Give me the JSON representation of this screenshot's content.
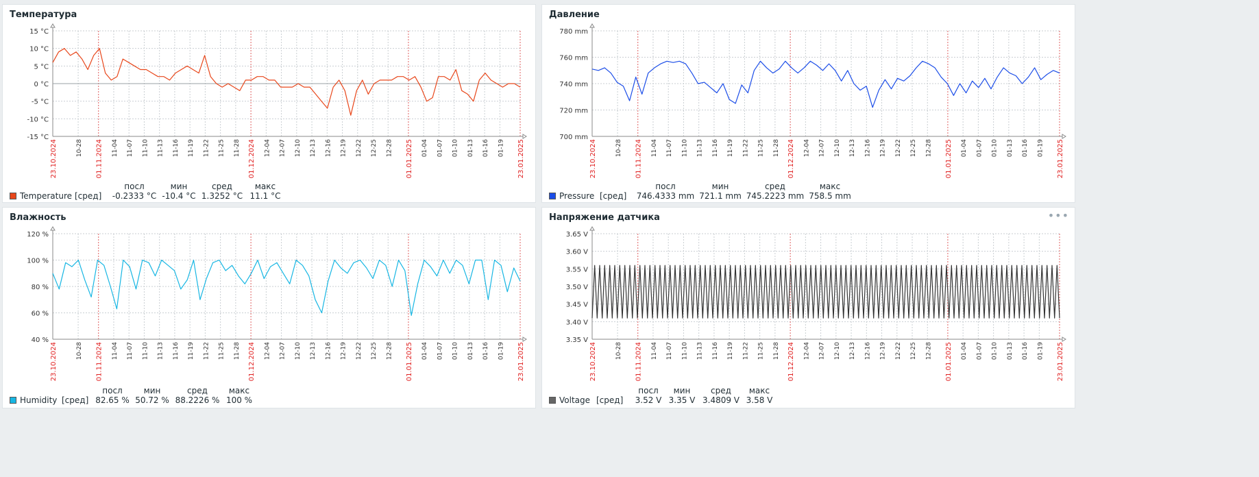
{
  "panels": [
    {
      "title": "Температура",
      "color": "#e8471b",
      "legend": {
        "name": "Temperature",
        "fn": "[сред]",
        "headers": [
          "посл",
          "мин",
          "сред",
          "макс"
        ],
        "values": [
          "-0.2333 °C",
          "-10.4 °C",
          "1.3252 °C",
          "11.1 °C"
        ]
      },
      "chart_data": {
        "type": "line",
        "unit": "°C",
        "ylim": [
          -15,
          15
        ],
        "yticks": [
          "15 °C",
          "10 °C",
          "5 °C",
          "0 °C",
          "-5 °C",
          "-10 °C",
          "-15 °C"
        ],
        "x_range": [
          "23.10.2024",
          "23.01.2025"
        ],
        "series": [
          {
            "name": "Temperature",
            "x_step_days": 2,
            "values": [
              6,
              9,
              10,
              8,
              9,
              7,
              4,
              8,
              10,
              3,
              1,
              2,
              7,
              6,
              5,
              4,
              4,
              3,
              2,
              2,
              1,
              3,
              4,
              5,
              4,
              3,
              8,
              2,
              0,
              -1,
              0,
              -1,
              -2,
              1,
              1,
              2,
              2,
              1,
              1,
              -1,
              -1,
              -1,
              0,
              -1,
              -1,
              -3,
              -5,
              -7,
              -1,
              1,
              -2,
              -9,
              -2,
              1,
              -3,
              0,
              1,
              1,
              1,
              2,
              2,
              1,
              2,
              -1,
              -5,
              -4,
              2,
              2,
              1,
              4,
              -2,
              -3,
              -5,
              1,
              3,
              1,
              0,
              -1,
              0,
              0,
              -1
            ]
          }
        ]
      },
      "zero_line": true
    },
    {
      "title": "Давление",
      "color": "#1b4de8",
      "legend": {
        "name": "Pressure",
        "fn": "[сред]",
        "headers": [
          "посл",
          "мин",
          "сред",
          "макс"
        ],
        "values": [
          "746.4333 mm",
          "721.1 mm",
          "745.2223 mm",
          "758.5 mm"
        ]
      },
      "chart_data": {
        "type": "line",
        "unit": "mm",
        "ylim": [
          700,
          780
        ],
        "yticks": [
          "780 mm",
          "760 mm",
          "740 mm",
          "720 mm",
          "700 mm"
        ],
        "x_range": [
          "23.10.2024",
          "23.01.2025"
        ],
        "series": [
          {
            "name": "Pressure",
            "x_step_days": 2,
            "values": [
              751,
              750,
              752,
              748,
              741,
              738,
              727,
              745,
              732,
              748,
              752,
              755,
              757,
              756,
              757,
              755,
              748,
              740,
              741,
              737,
              733,
              740,
              728,
              725,
              739,
              733,
              750,
              757,
              752,
              748,
              751,
              757,
              752,
              748,
              752,
              757,
              754,
              750,
              755,
              750,
              742,
              750,
              740,
              735,
              738,
              722,
              735,
              743,
              736,
              744,
              742,
              746,
              752,
              757,
              755,
              752,
              745,
              740,
              731,
              740,
              733,
              742,
              737,
              744,
              736,
              745,
              752,
              748,
              746,
              740,
              745,
              752,
              743,
              747,
              750,
              748
            ]
          }
        ]
      }
    },
    {
      "title": "Влажность",
      "color": "#17b6e3",
      "legend": {
        "name": "Humidity",
        "fn": "[сред]",
        "headers": [
          "посл",
          "мин",
          "сред",
          "макс"
        ],
        "values": [
          "82.65 %",
          "50.72 %",
          "88.2226 %",
          "100 %"
        ]
      },
      "chart_data": {
        "type": "line",
        "unit": "%",
        "ylim": [
          40,
          120
        ],
        "yticks": [
          "120 %",
          "100 %",
          "80 %",
          "60 %",
          "40 %"
        ],
        "x_range": [
          "23.10.2024",
          "23.01.2025"
        ],
        "series": [
          {
            "name": "Humidity",
            "x_step_days": 2,
            "values": [
              90,
              78,
              98,
              95,
              100,
              85,
              72,
              100,
              96,
              80,
              63,
              100,
              95,
              78,
              100,
              98,
              88,
              100,
              96,
              92,
              78,
              85,
              100,
              70,
              86,
              98,
              100,
              92,
              96,
              88,
              82,
              90,
              100,
              86,
              95,
              98,
              90,
              82,
              100,
              96,
              88,
              70,
              60,
              84,
              100,
              94,
              90,
              98,
              100,
              94,
              86,
              100,
              96,
              80,
              100,
              92,
              58,
              82,
              100,
              95,
              88,
              100,
              90,
              100,
              96,
              82,
              100,
              100,
              70,
              100,
              96,
              76,
              94,
              84
            ]
          }
        ]
      }
    },
    {
      "title": "Напряжение датчика",
      "color": "#333333",
      "menu": "•••",
      "legend": {
        "name": "Voltage",
        "fn": "[сред]",
        "headers": [
          "посл",
          "мин",
          "сред",
          "макс"
        ],
        "values": [
          "3.52 V",
          "3.35 V",
          "3.4809 V",
          "3.58 V"
        ]
      },
      "chart_data": {
        "type": "line",
        "unit": "V",
        "ylim": [
          3.35,
          3.65
        ],
        "yticks": [
          "3.65 V",
          "3.60 V",
          "3.55 V",
          "3.50 V",
          "3.45 V",
          "3.40 V",
          "3.35 V"
        ],
        "x_range": [
          "23.10.2024",
          "23.01.2025"
        ],
        "series": [
          {
            "name": "Voltage",
            "cycles": 93,
            "high": 3.56,
            "low": 3.41
          }
        ]
      }
    }
  ],
  "x_tick_labels": [
    "23.10.2024",
    "10-28",
    "01.11.2024",
    "11-04",
    "11-07",
    "11-10",
    "11-13",
    "11-16",
    "11-19",
    "11-22",
    "11-25",
    "11-28",
    "01.12.2024",
    "12-04",
    "12-07",
    "12-10",
    "12-13",
    "12-16",
    "12-19",
    "12-22",
    "12-25",
    "12-28",
    "01.01.2025",
    "01-04",
    "01-07",
    "01-10",
    "01-13",
    "01-16",
    "01-19",
    "23.01.2025"
  ],
  "x_tick_red": [
    true,
    false,
    true,
    false,
    false,
    false,
    false,
    false,
    false,
    false,
    false,
    false,
    true,
    false,
    false,
    false,
    false,
    false,
    false,
    false,
    false,
    false,
    true,
    false,
    false,
    false,
    false,
    false,
    false,
    true
  ],
  "x_tick_days": [
    0,
    5,
    9,
    12,
    15,
    18,
    21,
    24,
    27,
    30,
    33,
    36,
    39,
    42,
    45,
    48,
    51,
    54,
    57,
    60,
    63,
    66,
    70,
    73,
    76,
    79,
    82,
    85,
    88,
    92
  ]
}
